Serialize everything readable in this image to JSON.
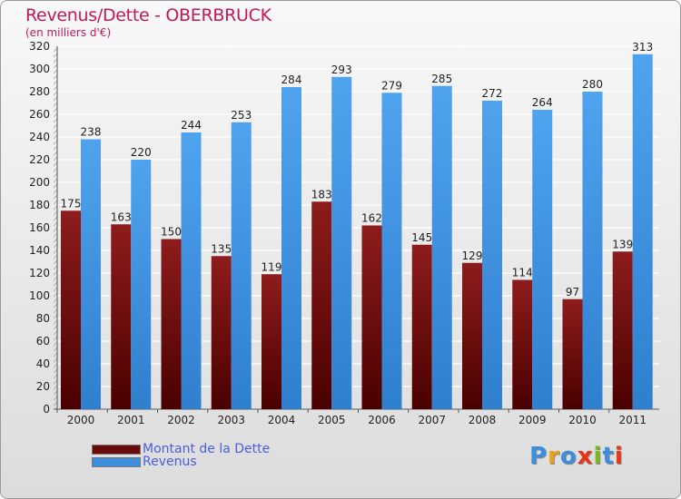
{
  "header": {
    "title": "Revenus/Dette - OBERBRUCK",
    "subtitle": "(en milliers d'€)"
  },
  "legend": {
    "items": [
      {
        "label": "Montant de la Dette",
        "color": "#7b1010"
      },
      {
        "label": "Revenus",
        "color": "#3d8fde"
      }
    ]
  },
  "logo": {
    "text": "Proxiti",
    "letter_colors": [
      "#3d8fde",
      "#e8a21a",
      "#3d8fde",
      "#e8351a",
      "#7bb81f",
      "#3d8fde",
      "#e8351a"
    ]
  },
  "chart_data": {
    "type": "bar",
    "categories": [
      "2000",
      "2001",
      "2002",
      "2003",
      "2004",
      "2005",
      "2006",
      "2007",
      "2008",
      "2009",
      "2010",
      "2011"
    ],
    "series": [
      {
        "name": "Montant de la Dette",
        "values": [
          175,
          163,
          150,
          135,
          119,
          183,
          162,
          145,
          129,
          114,
          97,
          139
        ],
        "color": "#7b1010"
      },
      {
        "name": "Revenus",
        "values": [
          238,
          220,
          244,
          253,
          284,
          293,
          279,
          285,
          272,
          264,
          280,
          313
        ],
        "color": "#3d8fde"
      }
    ],
    "ylim": [
      0,
      320
    ],
    "yticks": [
      0,
      20,
      40,
      60,
      80,
      100,
      120,
      140,
      160,
      180,
      200,
      220,
      240,
      260,
      280,
      300,
      320
    ],
    "grid": true,
    "legend_position": "bottom-left"
  }
}
